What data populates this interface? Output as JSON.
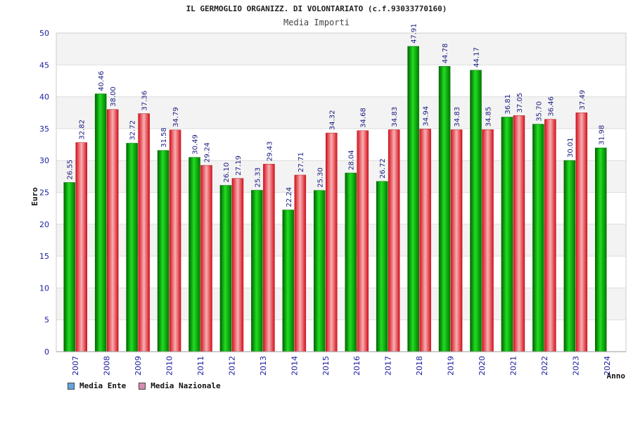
{
  "title": "IL GERMOGLIO ORGANIZZ. DI VOLONTARIATO (c.f.93033770160)",
  "colors": {
    "ente": "#00aa00",
    "nazionale": "#e8202a",
    "legend_ente": "#66a3e0",
    "legend_nazionale": "#d98cb3",
    "axis_text": "#1a1aa0",
    "band": "#f3f3f3"
  },
  "chart_data": {
    "type": "bar",
    "title": "IL GERMOGLIO ORGANIZZ. DI VOLONTARIATO (c.f.93033770160)",
    "subtitle": "Media Importi",
    "xlabel": "Anno",
    "ylabel": "Euro",
    "ylim": [
      0,
      50
    ],
    "yticks": [
      0,
      5,
      10,
      15,
      20,
      25,
      30,
      35,
      40,
      45,
      50
    ],
    "categories": [
      "2007",
      "2008",
      "2009",
      "2010",
      "2011",
      "2012",
      "2013",
      "2014",
      "2015",
      "2016",
      "2017",
      "2018",
      "2019",
      "2020",
      "2021",
      "2022",
      "2023",
      "2024"
    ],
    "series": [
      {
        "name": "Media Ente",
        "values": [
          26.55,
          40.46,
          32.72,
          31.58,
          30.49,
          26.1,
          25.33,
          22.24,
          25.3,
          28.04,
          26.72,
          47.91,
          44.78,
          44.17,
          36.81,
          35.7,
          30.01,
          31.98
        ],
        "labels": [
          "26.55",
          "40.46",
          "32.72",
          "31.58",
          "30.49",
          "26.10",
          "25.33",
          "22.24",
          "25.30",
          "28.04",
          "26.72",
          "47.91",
          "44.78",
          "44.17",
          "36.81",
          "35.70",
          "30.01",
          "31.98"
        ]
      },
      {
        "name": "Media Nazionale",
        "values": [
          32.82,
          38.0,
          37.36,
          34.79,
          29.24,
          27.19,
          29.43,
          27.71,
          34.32,
          34.68,
          34.83,
          34.94,
          34.83,
          34.85,
          37.05,
          36.46,
          37.49,
          null
        ],
        "labels": [
          "32.82",
          "38.00",
          "37.36",
          "34.79",
          "29.24",
          "27.19",
          "29.43",
          "27.71",
          "34.32",
          "34.68",
          "34.83",
          "34.94",
          "34.83",
          "34.85",
          "37.05",
          "36.46",
          "37.49",
          null
        ]
      }
    ],
    "legend": [
      "Media Ente",
      "Media Nazionale"
    ],
    "legend_position": "bottom-left",
    "grid": true
  }
}
